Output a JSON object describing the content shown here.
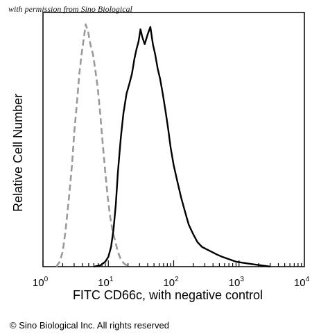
{
  "watermark": "with permission from Sino Biological",
  "copyright": "© Sino Biological Inc. All rights reserved",
  "chart_data": {
    "type": "line",
    "title": "",
    "xlabel": "FITC CD66c, with negative control",
    "ylabel": "Relative Cell Number",
    "x_scale": "log",
    "xlim": [
      1,
      10000
    ],
    "ylim": [
      0,
      100
    ],
    "grid": false,
    "x_ticks": [
      {
        "value": 1,
        "base": "10",
        "exp": "0"
      },
      {
        "value": 10,
        "base": "10",
        "exp": "1"
      },
      {
        "value": 100,
        "base": "10",
        "exp": "2"
      },
      {
        "value": 1000,
        "base": "10",
        "exp": "3"
      },
      {
        "value": 10000,
        "base": "10",
        "exp": "4"
      }
    ],
    "series": [
      {
        "color": "#9a9a9a",
        "dash": true,
        "points": [
          [
            1.6,
            0
          ],
          [
            1.8,
            2
          ],
          [
            2.0,
            6
          ],
          [
            2.2,
            14
          ],
          [
            2.5,
            28
          ],
          [
            2.8,
            42
          ],
          [
            3.0,
            54
          ],
          [
            3.3,
            66
          ],
          [
            3.6,
            78
          ],
          [
            3.9,
            86
          ],
          [
            4.2,
            92
          ],
          [
            4.5,
            98
          ],
          [
            4.9,
            95
          ],
          [
            5.3,
            90
          ],
          [
            5.8,
            86
          ],
          [
            6.3,
            80
          ],
          [
            6.9,
            72
          ],
          [
            7.5,
            62
          ],
          [
            8.2,
            50
          ],
          [
            9.0,
            38
          ],
          [
            9.8,
            28
          ],
          [
            10.7,
            20
          ],
          [
            11.7,
            14
          ],
          [
            12.8,
            10
          ],
          [
            14,
            6
          ],
          [
            15.5,
            3
          ],
          [
            17,
            1.5
          ],
          [
            19,
            0.5
          ],
          [
            21,
            0
          ]
        ]
      },
      {
        "color": "#000000",
        "dash": false,
        "points": [
          [
            6,
            0
          ],
          [
            7.5,
            0.5
          ],
          [
            9,
            2
          ],
          [
            10,
            4
          ],
          [
            11,
            8
          ],
          [
            12,
            15
          ],
          [
            13,
            25
          ],
          [
            14,
            38
          ],
          [
            15.5,
            52
          ],
          [
            17,
            62
          ],
          [
            19,
            70
          ],
          [
            21,
            74
          ],
          [
            23,
            78
          ],
          [
            25,
            84
          ],
          [
            27,
            88
          ],
          [
            29,
            91
          ],
          [
            31,
            96
          ],
          [
            33,
            93
          ],
          [
            36,
            90
          ],
          [
            40,
            94
          ],
          [
            44,
            97
          ],
          [
            48,
            90
          ],
          [
            52,
            86
          ],
          [
            57,
            80
          ],
          [
            62,
            76
          ],
          [
            68,
            70
          ],
          [
            75,
            63
          ],
          [
            82,
            56
          ],
          [
            90,
            48
          ],
          [
            100,
            41
          ],
          [
            115,
            34
          ],
          [
            130,
            28
          ],
          [
            150,
            22
          ],
          [
            170,
            17
          ],
          [
            200,
            13
          ],
          [
            230,
            10
          ],
          [
            270,
            8
          ],
          [
            320,
            7
          ],
          [
            380,
            6
          ],
          [
            450,
            5
          ],
          [
            550,
            4
          ],
          [
            700,
            3
          ],
          [
            900,
            2
          ],
          [
            1200,
            1.5
          ],
          [
            1600,
            1
          ],
          [
            2200,
            0.5
          ],
          [
            3000,
            0
          ]
        ]
      }
    ]
  }
}
